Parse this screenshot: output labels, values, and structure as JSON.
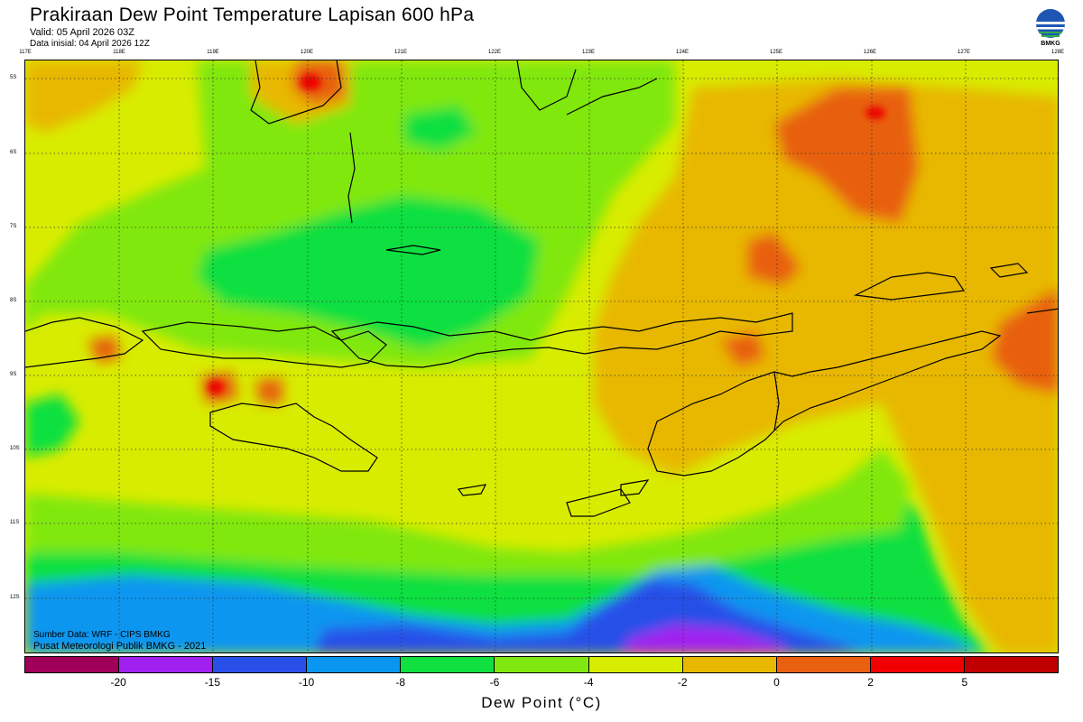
{
  "header": {
    "title": "Prakiraan Dew Point Temperature Lapisan 600 hPa",
    "valid": "Valid: 05 April 2026 03Z",
    "init": "Data inisial: 04 April 2026 12Z"
  },
  "logo": {
    "icon": "bmkg-logo-icon",
    "text": "BMKG"
  },
  "map": {
    "lon_ticks": [
      "117E",
      "118E",
      "119E",
      "120E",
      "121E",
      "122E",
      "123E",
      "124E",
      "125E",
      "126E",
      "127E",
      "128E"
    ],
    "lat_ticks": [
      "5S",
      "6S",
      "7S",
      "8S",
      "9S",
      "10S",
      "11S",
      "12S"
    ],
    "grid": true,
    "variable": "Dew Point Temperature",
    "level": "600 hPa"
  },
  "credits": {
    "line1": "Sumber Data: WRF - CIPS BMKG",
    "line2": "Pusat Meteorologi Publik BMKG - 2021"
  },
  "colorbar": {
    "colors": [
      "#a0005a",
      "#a020f0",
      "#2850e8",
      "#0a96f0",
      "#10e040",
      "#80e810",
      "#d8ec00",
      "#e8b800",
      "#e86010",
      "#f00000",
      "#c00000"
    ],
    "ticks": [
      "-20",
      "-15",
      "-10",
      "-8",
      "-6",
      "-4",
      "-2",
      "0",
      "2",
      "5"
    ],
    "label": "Dew Point (°C)"
  }
}
